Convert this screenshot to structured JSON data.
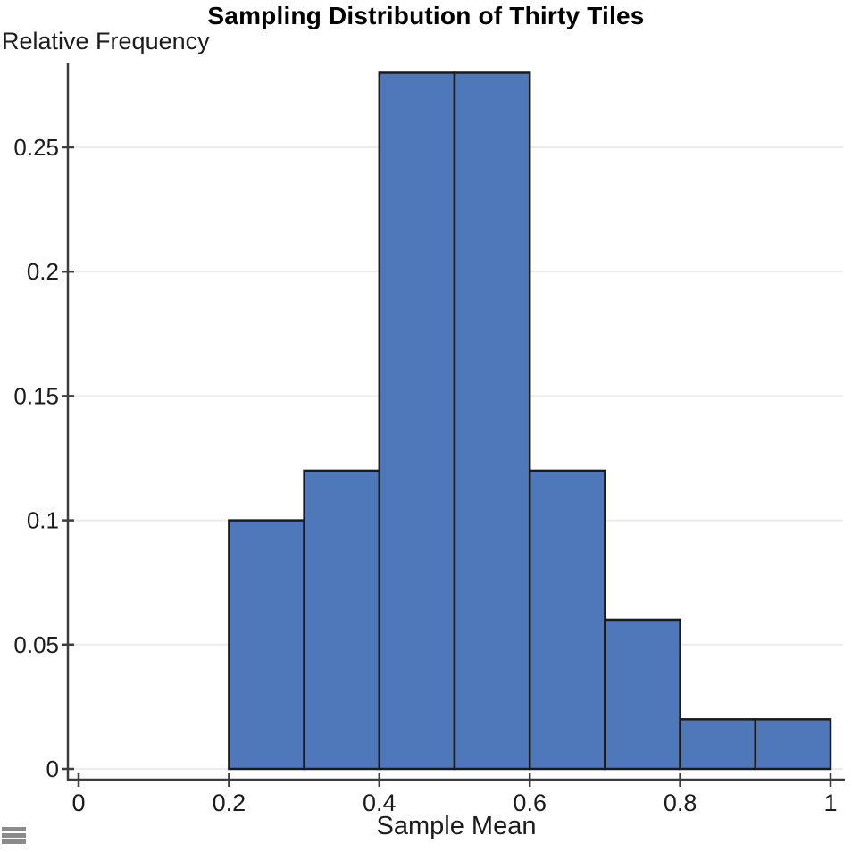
{
  "page": {
    "title": "Sampling Distribution of Thirty Tiles"
  },
  "icons": {
    "menu_grabber": "triple-bar ≡ drag/menu handle, gray #8b8b8b, bottom-left corner"
  },
  "chart_data": {
    "type": "bar",
    "subtype": "histogram",
    "title": "Sampling Distribution of Thirty Tiles",
    "xlabel": "Sample Mean",
    "ylabel": "Relative Frequency",
    "bin_edges": [
      0.2,
      0.3,
      0.4,
      0.5,
      0.6,
      0.7,
      0.8,
      0.9,
      1.0
    ],
    "values": [
      0.1,
      0.12,
      0.28,
      0.28,
      0.12,
      0.06,
      0.02,
      0.02
    ],
    "x_ticks": [
      0,
      0.2,
      0.4,
      0.6,
      0.8,
      1
    ],
    "x_tick_labels": [
      "0",
      "0.2",
      "0.4",
      "0.6",
      "0.8",
      "1"
    ],
    "y_ticks": [
      0,
      0.05,
      0.1,
      0.15,
      0.2,
      0.25
    ],
    "y_tick_labels": [
      "0",
      "0.05",
      "0.1",
      "0.15",
      "0.2",
      "0.25"
    ],
    "xlim": [
      0,
      1.02
    ],
    "ylim": [
      0,
      0.284
    ],
    "grid": true,
    "legend": "none",
    "colors": {
      "bar_fill": "#4e78b9",
      "bar_edge": "#1b1b1b",
      "axis": "#3c3c3c",
      "grid": "#ebebeb",
      "text": "#1c1c1c"
    }
  }
}
